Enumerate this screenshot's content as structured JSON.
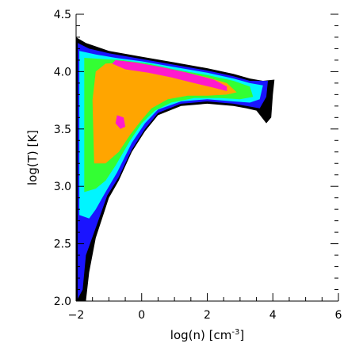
{
  "chart_data": {
    "type": "heatmap",
    "title": "",
    "xlabel": "log(n)  [cm",
    "xlabel_sup": "-3",
    "xlabel_end": "]",
    "ylabel": "log(T)  [K]",
    "xlim": [
      -2,
      6
    ],
    "ylim": [
      2.0,
      4.5
    ],
    "x_ticks": [
      {
        "value": -2,
        "label": "−2"
      },
      {
        "value": 0,
        "label": "0"
      },
      {
        "value": 2,
        "label": "2"
      },
      {
        "value": 4,
        "label": "4"
      },
      {
        "value": 6,
        "label": "6"
      }
    ],
    "y_ticks": [
      {
        "value": 2.0,
        "label": "2.0"
      },
      {
        "value": 2.5,
        "label": "2.5"
      },
      {
        "value": 3.0,
        "label": "3.0"
      },
      {
        "value": 3.5,
        "label": "3.5"
      },
      {
        "value": 4.0,
        "label": "4.0"
      },
      {
        "value": 4.5,
        "label": "4.5"
      }
    ],
    "contour_levels": [
      {
        "level": 1,
        "color": "#000000",
        "polygon": [
          [
            -2.0,
            2.0
          ],
          [
            -2.0,
            4.3
          ],
          [
            -1.7,
            4.25
          ],
          [
            -1.4,
            4.22
          ],
          [
            -1.0,
            4.18
          ],
          [
            0.0,
            4.13
          ],
          [
            1.0,
            4.08
          ],
          [
            2.0,
            4.03
          ],
          [
            2.8,
            3.98
          ],
          [
            3.3,
            3.94
          ],
          [
            3.7,
            3.92
          ],
          [
            4.05,
            3.93
          ],
          [
            4.0,
            3.8
          ],
          [
            3.95,
            3.6
          ],
          [
            3.8,
            3.55
          ],
          [
            3.5,
            3.66
          ],
          [
            3.2,
            3.68
          ],
          [
            2.8,
            3.7
          ],
          [
            2.0,
            3.72
          ],
          [
            1.2,
            3.7
          ],
          [
            0.5,
            3.62
          ],
          [
            0.1,
            3.48
          ],
          [
            -0.3,
            3.3
          ],
          [
            -0.7,
            3.05
          ],
          [
            -1.0,
            2.9
          ],
          [
            -1.4,
            2.55
          ],
          [
            -1.6,
            2.25
          ],
          [
            -1.7,
            2.0
          ]
        ]
      },
      {
        "level": 2,
        "color": "#1a14ff",
        "polygon": [
          [
            -1.95,
            2.02
          ],
          [
            -1.95,
            4.25
          ],
          [
            -1.6,
            4.2
          ],
          [
            -1.0,
            4.16
          ],
          [
            0.0,
            4.11
          ],
          [
            1.0,
            4.06
          ],
          [
            2.0,
            4.01
          ],
          [
            2.8,
            3.96
          ],
          [
            3.3,
            3.92
          ],
          [
            3.85,
            3.92
          ],
          [
            3.8,
            3.78
          ],
          [
            3.6,
            3.68
          ],
          [
            3.2,
            3.7
          ],
          [
            2.8,
            3.72
          ],
          [
            2.0,
            3.74
          ],
          [
            1.2,
            3.72
          ],
          [
            0.5,
            3.64
          ],
          [
            0.1,
            3.5
          ],
          [
            -0.3,
            3.32
          ],
          [
            -0.7,
            3.08
          ],
          [
            -1.05,
            2.92
          ],
          [
            -1.45,
            2.6
          ],
          [
            -1.7,
            2.4
          ],
          [
            -1.8,
            2.1
          ]
        ]
      },
      {
        "level": 3,
        "color": "#00f5ff",
        "polygon": [
          [
            -1.9,
            2.75
          ],
          [
            -1.9,
            4.18
          ],
          [
            -1.4,
            4.15
          ],
          [
            -0.8,
            4.12
          ],
          [
            0.0,
            4.09
          ],
          [
            1.0,
            4.04
          ],
          [
            2.0,
            3.99
          ],
          [
            2.8,
            3.94
          ],
          [
            3.3,
            3.9
          ],
          [
            3.7,
            3.88
          ],
          [
            3.6,
            3.76
          ],
          [
            3.3,
            3.73
          ],
          [
            2.8,
            3.74
          ],
          [
            2.0,
            3.76
          ],
          [
            1.2,
            3.74
          ],
          [
            0.5,
            3.67
          ],
          [
            0.1,
            3.55
          ],
          [
            -0.3,
            3.38
          ],
          [
            -0.75,
            3.12
          ],
          [
            -1.1,
            2.95
          ],
          [
            -1.4,
            2.8
          ],
          [
            -1.6,
            2.72
          ]
        ]
      },
      {
        "level": 4,
        "color": "#33ff33",
        "polygon": [
          [
            -1.75,
            2.95
          ],
          [
            -1.75,
            4.12
          ],
          [
            -1.2,
            4.11
          ],
          [
            -0.6,
            4.1
          ],
          [
            0.2,
            4.07
          ],
          [
            1.0,
            4.02
          ],
          [
            2.0,
            3.97
          ],
          [
            2.8,
            3.92
          ],
          [
            3.3,
            3.87
          ],
          [
            3.4,
            3.78
          ],
          [
            3.0,
            3.76
          ],
          [
            2.4,
            3.77
          ],
          [
            1.6,
            3.77
          ],
          [
            0.9,
            3.73
          ],
          [
            0.4,
            3.66
          ],
          [
            0.0,
            3.55
          ],
          [
            -0.35,
            3.4
          ],
          [
            -0.8,
            3.18
          ],
          [
            -1.1,
            3.05
          ],
          [
            -1.4,
            2.98
          ]
        ]
      },
      {
        "level": 5,
        "color": "#ffa500",
        "polygon": [
          [
            -1.45,
            3.2
          ],
          [
            -1.5,
            3.75
          ],
          [
            -1.4,
            4.0
          ],
          [
            -1.1,
            4.07
          ],
          [
            -0.5,
            4.08
          ],
          [
            0.3,
            4.05
          ],
          [
            1.2,
            4.0
          ],
          [
            2.0,
            3.95
          ],
          [
            2.6,
            3.9
          ],
          [
            2.9,
            3.82
          ],
          [
            2.6,
            3.8
          ],
          [
            2.0,
            3.79
          ],
          [
            1.4,
            3.79
          ],
          [
            0.8,
            3.76
          ],
          [
            0.3,
            3.68
          ],
          [
            0.0,
            3.58
          ],
          [
            -0.35,
            3.45
          ],
          [
            -0.7,
            3.3
          ],
          [
            -1.1,
            3.2
          ]
        ]
      },
      {
        "level": 6,
        "color": "#ff1acd",
        "polygon": [
          [
            -0.9,
            4.07
          ],
          [
            -0.8,
            4.1
          ],
          [
            -0.2,
            4.08
          ],
          [
            0.6,
            4.04
          ],
          [
            1.4,
            3.99
          ],
          [
            2.2,
            3.93
          ],
          [
            2.6,
            3.87
          ],
          [
            2.6,
            3.83
          ],
          [
            2.2,
            3.86
          ],
          [
            1.6,
            3.9
          ],
          [
            0.9,
            3.95
          ],
          [
            0.2,
            3.99
          ],
          [
            -0.5,
            4.02
          ]
        ]
      },
      {
        "level": 6,
        "color": "#ff1acd",
        "polygon": [
          [
            -0.8,
            3.55
          ],
          [
            -0.75,
            3.62
          ],
          [
            -0.55,
            3.6
          ],
          [
            -0.5,
            3.52
          ],
          [
            -0.65,
            3.5
          ]
        ]
      }
    ]
  }
}
